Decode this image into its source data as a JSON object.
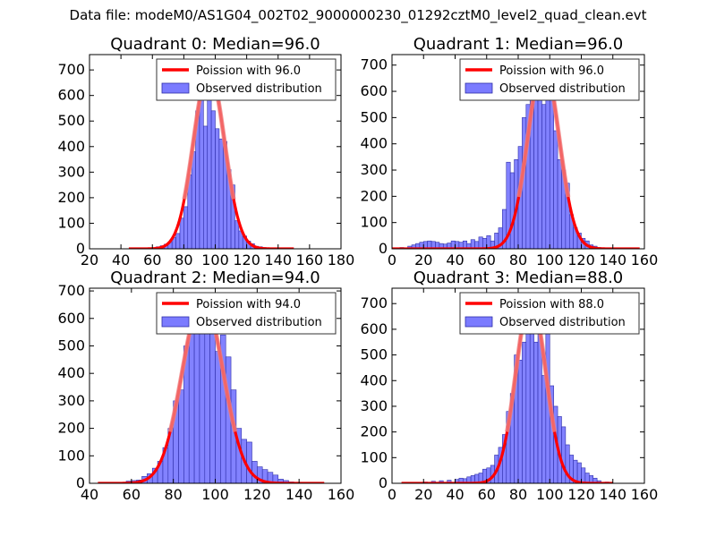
{
  "figure": {
    "title": "Data file: modeM0/AS1G04_002T02_9000000230_01292cztM0_level2_quad_clean.evt",
    "colors": {
      "bars": "#7b7bff",
      "bar_edge": "#2e2ea8",
      "poisson": "#ff0000",
      "poisson_peak": "#f08080",
      "legend_border": "#333333"
    }
  },
  "chart_data": [
    {
      "type": "bar",
      "title": "Quadrant 0: Median=96.0",
      "legend": [
        "Poission with 96.0",
        "Observed distribution"
      ],
      "legend_position": "top-right",
      "xlim": [
        20,
        180
      ],
      "ylim": [
        0,
        760
      ],
      "xticks": [
        20,
        40,
        60,
        80,
        100,
        120,
        140,
        160,
        180
      ],
      "yticks": [
        0,
        100,
        200,
        300,
        400,
        500,
        600,
        700
      ],
      "bin_width": 2.5,
      "bins": [
        [
          62.5,
          8
        ],
        [
          65,
          12
        ],
        [
          67.5,
          18
        ],
        [
          70,
          25
        ],
        [
          72.5,
          45
        ],
        [
          75,
          60
        ],
        [
          77.5,
          120
        ],
        [
          80,
          165
        ],
        [
          82.5,
          290
        ],
        [
          85,
          380
        ],
        [
          87.5,
          540
        ],
        [
          90,
          700
        ],
        [
          92.5,
          480
        ],
        [
          95,
          720
        ],
        [
          97.5,
          540
        ],
        [
          100,
          470
        ],
        [
          102.5,
          430
        ],
        [
          105,
          420
        ],
        [
          107.5,
          310
        ],
        [
          110,
          250
        ],
        [
          112.5,
          110
        ],
        [
          115,
          70
        ],
        [
          117.5,
          50
        ],
        [
          120,
          30
        ],
        [
          122.5,
          20
        ],
        [
          125,
          10
        ],
        [
          127.5,
          8
        ],
        [
          130,
          5
        ]
      ],
      "poisson": {
        "mean": 96.0,
        "peak": 700,
        "sigma": 9.8,
        "range": [
          45,
          150
        ]
      }
    },
    {
      "type": "bar",
      "title": "Quadrant 1: Median=96.0",
      "legend": [
        "Poission with 96.0",
        "Observed distribution"
      ],
      "legend_position": "top-right",
      "xlim": [
        0,
        160
      ],
      "ylim": [
        0,
        740
      ],
      "xticks": [
        0,
        20,
        40,
        60,
        80,
        100,
        120,
        140,
        160
      ],
      "yticks": [
        0,
        100,
        200,
        300,
        400,
        500,
        600,
        700
      ],
      "bin_width": 2.5,
      "bins": [
        [
          5,
          5
        ],
        [
          10,
          10
        ],
        [
          12.5,
          15
        ],
        [
          15,
          20
        ],
        [
          17.5,
          25
        ],
        [
          20,
          28
        ],
        [
          22.5,
          30
        ],
        [
          25,
          28
        ],
        [
          27.5,
          25
        ],
        [
          30,
          20
        ],
        [
          32.5,
          18
        ],
        [
          35,
          22
        ],
        [
          37.5,
          30
        ],
        [
          40,
          28
        ],
        [
          42.5,
          25
        ],
        [
          45,
          30
        ],
        [
          47.5,
          20
        ],
        [
          50,
          35
        ],
        [
          52.5,
          28
        ],
        [
          55,
          45
        ],
        [
          57.5,
          40
        ],
        [
          60,
          50
        ],
        [
          62.5,
          30
        ],
        [
          65,
          60
        ],
        [
          67.5,
          80
        ],
        [
          70,
          150
        ],
        [
          72.5,
          330
        ],
        [
          75,
          290
        ],
        [
          77.5,
          340
        ],
        [
          80,
          390
        ],
        [
          82.5,
          500
        ],
        [
          85,
          550
        ],
        [
          87.5,
          580
        ],
        [
          90,
          610
        ],
        [
          92.5,
          720
        ],
        [
          95,
          550
        ],
        [
          97.5,
          570
        ],
        [
          100,
          620
        ],
        [
          102.5,
          450
        ],
        [
          105,
          340
        ],
        [
          107.5,
          300
        ],
        [
          110,
          250
        ],
        [
          112.5,
          130
        ],
        [
          115,
          80
        ],
        [
          117.5,
          60
        ],
        [
          120,
          40
        ],
        [
          122.5,
          30
        ],
        [
          125,
          15
        ],
        [
          127.5,
          10
        ],
        [
          130,
          5
        ]
      ],
      "poisson": {
        "mean": 96.0,
        "peak": 710,
        "sigma": 9.8,
        "range": [
          0,
          157
        ]
      }
    },
    {
      "type": "bar",
      "title": "Quadrant 2: Median=94.0",
      "legend": [
        "Poission with 94.0",
        "Observed distribution"
      ],
      "legend_position": "top-right",
      "xlim": [
        40,
        160
      ],
      "ylim": [
        0,
        710
      ],
      "xticks": [
        40,
        60,
        80,
        100,
        120,
        140,
        160
      ],
      "yticks": [
        0,
        100,
        200,
        300,
        400,
        500,
        600,
        700
      ],
      "bin_width": 2.5,
      "bins": [
        [
          57.5,
          8
        ],
        [
          60,
          10
        ],
        [
          62.5,
          12
        ],
        [
          65,
          25
        ],
        [
          67.5,
          35
        ],
        [
          70,
          55
        ],
        [
          72.5,
          80
        ],
        [
          75,
          130
        ],
        [
          77.5,
          200
        ],
        [
          80,
          300
        ],
        [
          82.5,
          340
        ],
        [
          85,
          500
        ],
        [
          87.5,
          560
        ],
        [
          90,
          650
        ],
        [
          92.5,
          600
        ],
        [
          95,
          560
        ],
        [
          97.5,
          570
        ],
        [
          100,
          480
        ],
        [
          102.5,
          540
        ],
        [
          105,
          460
        ],
        [
          107.5,
          340
        ],
        [
          110,
          200
        ],
        [
          112.5,
          160
        ],
        [
          115,
          150
        ],
        [
          117.5,
          80
        ],
        [
          120,
          60
        ],
        [
          122.5,
          50
        ],
        [
          125,
          40
        ],
        [
          127.5,
          30
        ],
        [
          130,
          15
        ],
        [
          132.5,
          10
        ],
        [
          135,
          5
        ]
      ],
      "poisson": {
        "mean": 94.0,
        "peak": 675,
        "sigma": 9.7,
        "range": [
          44,
          152
        ]
      }
    },
    {
      "type": "bar",
      "title": "Quadrant 3: Median=88.0",
      "legend": [
        "Poission with 88.0",
        "Observed distribution"
      ],
      "legend_position": "top-right",
      "xlim": [
        0,
        160
      ],
      "ylim": [
        0,
        760
      ],
      "xticks": [
        0,
        20,
        40,
        60,
        80,
        100,
        120,
        140,
        160
      ],
      "yticks": [
        0,
        100,
        200,
        300,
        400,
        500,
        600,
        700
      ],
      "bin_width": 2.5,
      "bins": [
        [
          20,
          5
        ],
        [
          25,
          8
        ],
        [
          30,
          10
        ],
        [
          35,
          12
        ],
        [
          40,
          15
        ],
        [
          42.5,
          20
        ],
        [
          45,
          18
        ],
        [
          47.5,
          25
        ],
        [
          50,
          30
        ],
        [
          52.5,
          35
        ],
        [
          55,
          40
        ],
        [
          57.5,
          55
        ],
        [
          60,
          60
        ],
        [
          62.5,
          70
        ],
        [
          65,
          110
        ],
        [
          67.5,
          140
        ],
        [
          70,
          190
        ],
        [
          72.5,
          280
        ],
        [
          75,
          350
        ],
        [
          77.5,
          500
        ],
        [
          80,
          480
        ],
        [
          82.5,
          550
        ],
        [
          85,
          680
        ],
        [
          87.5,
          700
        ],
        [
          90,
          550
        ],
        [
          92.5,
          600
        ],
        [
          95,
          420
        ],
        [
          97.5,
          600
        ],
        [
          100,
          380
        ],
        [
          102.5,
          300
        ],
        [
          105,
          260
        ],
        [
          107.5,
          220
        ],
        [
          110,
          150
        ],
        [
          112.5,
          110
        ],
        [
          115,
          90
        ],
        [
          117.5,
          80
        ],
        [
          120,
          60
        ],
        [
          122.5,
          40
        ],
        [
          125,
          30
        ],
        [
          127.5,
          20
        ],
        [
          130,
          10
        ],
        [
          135,
          5
        ]
      ],
      "poisson": {
        "mean": 88.0,
        "peak": 720,
        "sigma": 9.4,
        "range": [
          6,
          140
        ]
      }
    }
  ]
}
